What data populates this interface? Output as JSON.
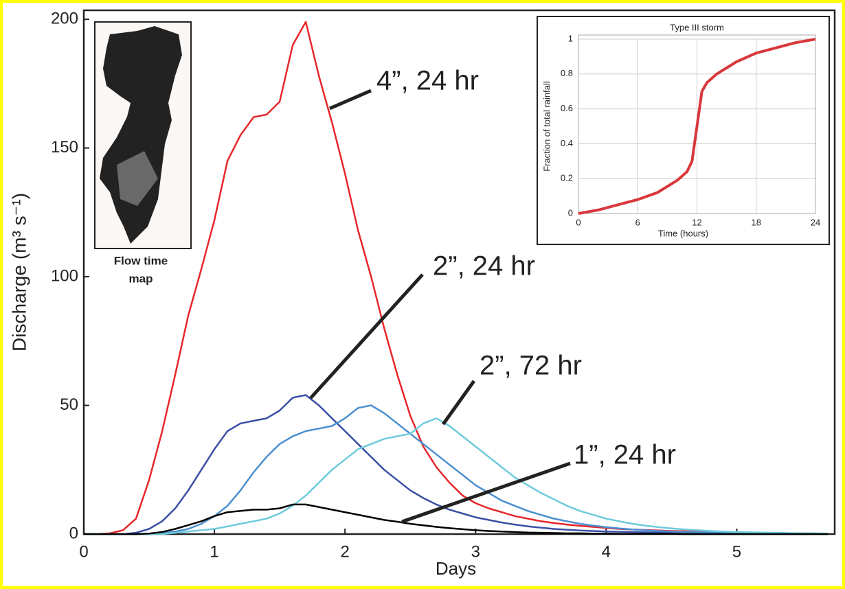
{
  "chart_data": [
    {
      "type": "line",
      "xlabel": "Days",
      "ylabel": "Discharge (m³ s⁻¹)",
      "x": [
        0,
        0.1,
        0.2,
        0.3,
        0.4,
        0.5,
        0.6,
        0.7,
        0.8,
        0.9,
        1,
        1.1,
        1.2,
        1.3,
        1.4,
        1.5,
        1.6,
        1.7,
        1.8,
        1.9,
        2,
        2.1,
        2.2,
        2.3,
        2.4,
        2.5,
        2.6,
        2.7,
        2.8,
        2.9,
        3,
        3.1,
        3.2,
        3.3,
        3.4,
        3.5,
        3.6,
        3.7,
        3.8,
        3.9,
        4,
        4.1,
        4.2,
        4.3,
        4.4,
        4.5,
        4.6,
        4.7,
        4.8,
        4.9,
        5,
        5.1,
        5.2,
        5.3,
        5.4,
        5.5,
        5.6,
        5.7
      ],
      "series": [
        {
          "name": "4”, 24 hr",
          "color": "#e8262a",
          "values": [
            0,
            0,
            0.3,
            1.5,
            6,
            21,
            40,
            62,
            85,
            103,
            122,
            145,
            155,
            162,
            163,
            168,
            190,
            199,
            178,
            160,
            140,
            118,
            100,
            80,
            62,
            46,
            34,
            26,
            20,
            15,
            12,
            10,
            8.5,
            7,
            6,
            5,
            4.3,
            3.7,
            3.2,
            2.8,
            2.4,
            2,
            1.8,
            1.6,
            1.4,
            1.2,
            1.1,
            1,
            0.9,
            0.8,
            0.7,
            0.6,
            0.5,
            0.4,
            0.3,
            0.3,
            0.2,
            0.2
          ]
        },
        {
          "name": "2”, 24 hr",
          "color": "#3a4fa6",
          "values": [
            0,
            0,
            0,
            0,
            0.5,
            2,
            5,
            10,
            17,
            25,
            33,
            40,
            43,
            44,
            45,
            48,
            53,
            54,
            50,
            45,
            40,
            35,
            30,
            25,
            21,
            17,
            14,
            11.5,
            9.5,
            8,
            6.5,
            5.5,
            4.5,
            3.7,
            3,
            2.5,
            2,
            1.7,
            1.4,
            1.2,
            1,
            0.9,
            0.8,
            0.7,
            0.6,
            0.5,
            0.4,
            0.4,
            0.3,
            0.3,
            0.2,
            0.2,
            0.2,
            0.1,
            0.1,
            0.1,
            0.1,
            0.1
          ]
        },
        {
          "color": "#4a8fd0",
          "values": [
            0,
            0,
            0,
            0,
            0,
            0,
            0.3,
            1,
            2,
            4,
            7,
            11,
            17,
            24,
            30,
            35,
            38,
            40,
            41,
            42,
            45,
            49,
            50,
            47,
            43,
            39,
            35,
            31,
            27,
            23,
            19,
            16,
            13,
            11,
            9,
            7.5,
            6,
            5,
            4,
            3.3,
            2.7,
            2.2,
            1.8,
            1.5,
            1.2,
            1,
            0.8,
            0.7,
            0.6,
            0.5,
            0.4,
            0.4,
            0.3,
            0.3,
            0.2,
            0.2,
            0.2,
            0.2
          ]
        },
        {
          "name": "2”, 72 hr",
          "color": "#6ecbdc",
          "values": [
            0,
            0,
            0,
            0,
            0,
            0,
            0,
            0.5,
            1,
            1.5,
            2,
            3,
            4,
            5,
            6,
            8,
            11,
            15,
            20,
            25,
            29,
            33,
            35,
            37,
            38,
            39,
            43,
            45,
            42,
            38,
            34,
            30,
            26,
            22,
            19,
            16,
            13.5,
            11,
            9,
            7.5,
            6,
            5,
            4,
            3.3,
            2.7,
            2.2,
            1.8,
            1.5,
            1.2,
            1,
            0.8,
            0.7,
            0.6,
            0.5,
            0.4,
            0.3,
            0.3,
            0.2
          ]
        },
        {
          "name": "1”, 24 hr",
          "color": "#000000",
          "values": [
            0,
            0,
            0,
            0,
            0,
            0.2,
            0.8,
            2,
            3.5,
            5,
            7,
            8.5,
            9,
            9.5,
            9.5,
            10,
            11.5,
            11.5,
            10.5,
            9.5,
            8.5,
            7.5,
            6.5,
            5.5,
            4.8,
            4,
            3.4,
            2.8,
            2.3,
            1.9,
            1.5,
            1.2,
            1,
            0.8,
            0.6,
            0.5,
            0.4,
            0.3,
            0.3,
            0.2,
            0.2,
            0.1,
            0.1,
            0.1,
            0.1,
            0.1,
            0,
            0,
            0,
            0,
            0,
            0,
            0,
            0,
            0,
            0,
            0,
            0
          ]
        }
      ],
      "xlim": [
        0,
        5.75
      ],
      "ylim": [
        0,
        203.5
      ],
      "xticks": [
        0,
        1,
        2,
        3,
        4,
        5
      ],
      "yticks": [
        0,
        50,
        100,
        150,
        200
      ],
      "grid": false
    },
    {
      "type": "line",
      "title": "Type III storm",
      "xlabel": "Time (hours)",
      "ylabel": "Fraction of total rainfall",
      "x": [
        0,
        2,
        4,
        6,
        8,
        10,
        11,
        11.5,
        12,
        12.5,
        13,
        14,
        16,
        18,
        20,
        22,
        24
      ],
      "series": [
        {
          "color": "#d8383c",
          "values": [
            0,
            0.02,
            0.05,
            0.08,
            0.12,
            0.19,
            0.24,
            0.3,
            0.5,
            0.7,
            0.75,
            0.8,
            0.87,
            0.92,
            0.95,
            0.98,
            1
          ]
        }
      ],
      "xlim": [
        0,
        24
      ],
      "ylim": [
        0,
        1
      ],
      "xticks": [
        0,
        6,
        12,
        18,
        24
      ],
      "yticks": [
        0,
        0.2,
        0.4,
        0.6,
        0.8,
        1
      ],
      "grid": true
    }
  ],
  "map_caption": [
    "Flow time",
    "map"
  ]
}
